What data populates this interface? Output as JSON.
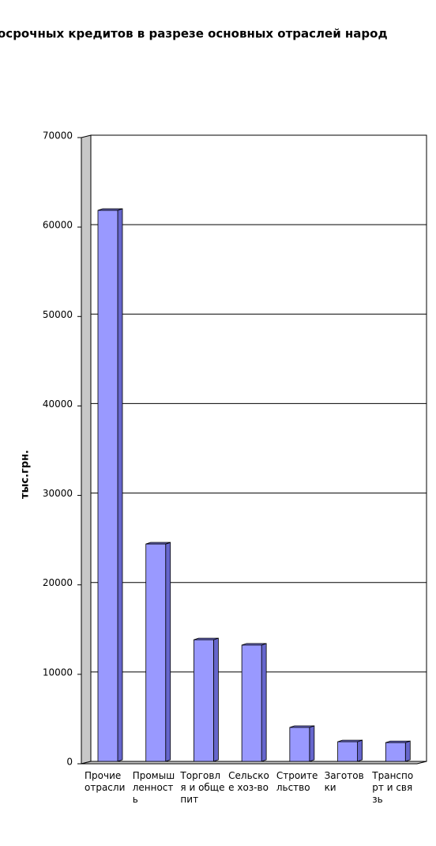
{
  "chart_data": {
    "type": "bar",
    "title": "осрочных кредитов в разрезе основных отраслей народ",
    "y_label": "тыс.грн.",
    "categories": [
      "Прочие отрасли",
      "Промышленность",
      "Торговля и общепит",
      "Сельское хоз-во",
      "Строительство",
      "Заготовки",
      "Транспорт и связь"
    ],
    "values": [
      61600,
      24300,
      13600,
      13000,
      3800,
      2200,
      2100
    ],
    "color": "#9999ff",
    "ylim": [
      0,
      70000
    ],
    "yticks": [
      0,
      10000,
      20000,
      30000,
      40000,
      50000,
      60000,
      70000
    ],
    "grid": true
  }
}
